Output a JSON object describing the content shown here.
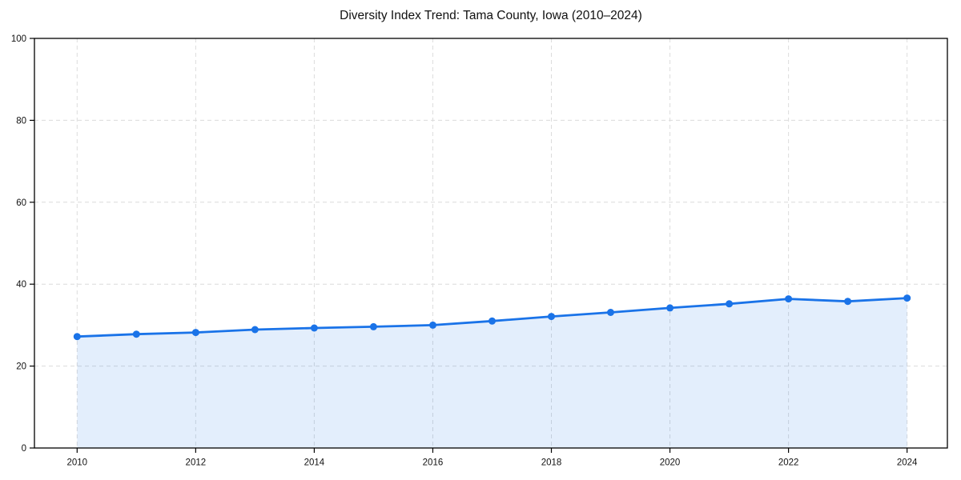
{
  "chart_data": {
    "type": "area",
    "title": "Diversity Index Trend: Tama County, Iowa (2010–2024)",
    "x": [
      2010,
      2011,
      2012,
      2013,
      2014,
      2015,
      2016,
      2017,
      2018,
      2019,
      2020,
      2021,
      2022,
      2023,
      2024
    ],
    "series": [
      {
        "name": "Diversity Index",
        "values": [
          27.2,
          27.8,
          28.2,
          28.9,
          29.3,
          29.6,
          30.0,
          31.0,
          32.1,
          33.1,
          34.2,
          35.2,
          36.4,
          35.8,
          36.6
        ]
      }
    ],
    "xlabel": "",
    "ylabel": "",
    "xlim": [
      2009.28,
      2024.68
    ],
    "ylim": [
      0,
      100
    ],
    "xticks": [
      2010,
      2012,
      2014,
      2016,
      2018,
      2020,
      2022,
      2024
    ],
    "yticks": [
      0,
      20,
      40,
      60,
      80,
      100
    ],
    "grid": true,
    "grid_style": "dashed",
    "legend_position": "none",
    "line_color": "#1a73e8",
    "marker_color": "#1a73e8",
    "fill_color": "#1a73e8",
    "fill_opacity": 0.12,
    "grid_color": "#dcdcdc",
    "axis_color": "#000000",
    "text_color": "#111111",
    "background_color": "#ffffff"
  }
}
